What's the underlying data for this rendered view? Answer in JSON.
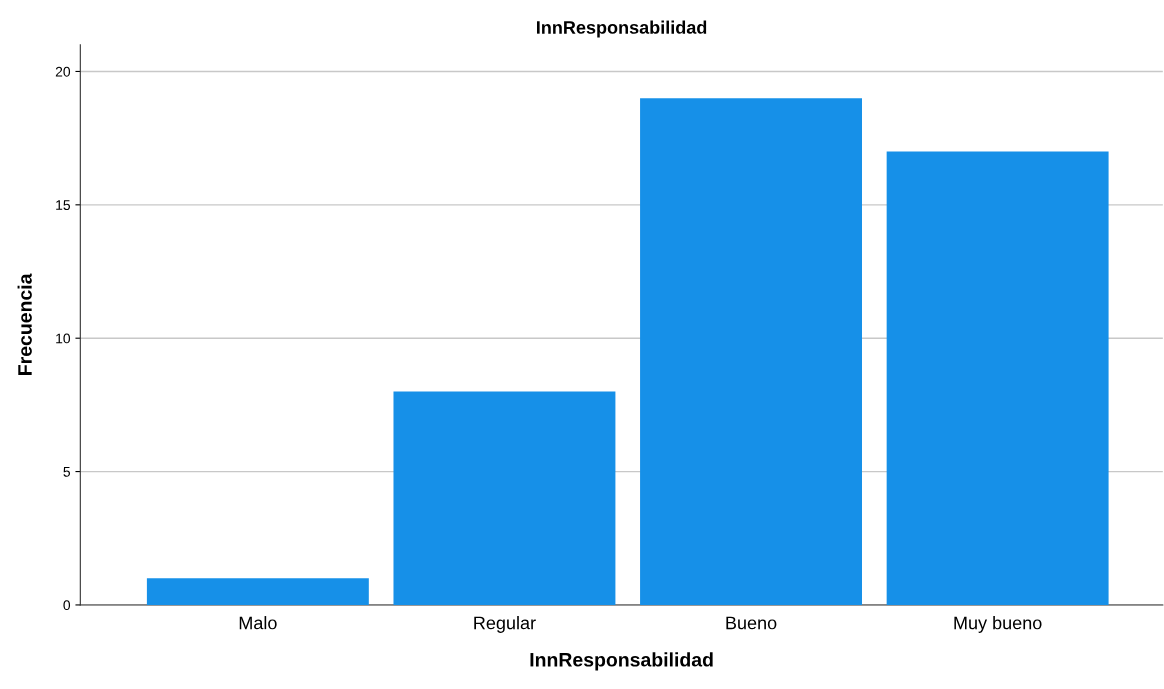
{
  "chart_data": {
    "type": "bar",
    "title": "InnResponsabilidad",
    "xlabel": "InnResponsabilidad",
    "ylabel": "Frecuencia",
    "categories": [
      "Malo",
      "Regular",
      "Bueno",
      "Muy bueno"
    ],
    "values": [
      1,
      8,
      19,
      17
    ],
    "color": "#1690e8",
    "ylim": [
      0,
      21
    ],
    "yticks": [
      0,
      5,
      10,
      15,
      20
    ],
    "grid": "y"
  }
}
